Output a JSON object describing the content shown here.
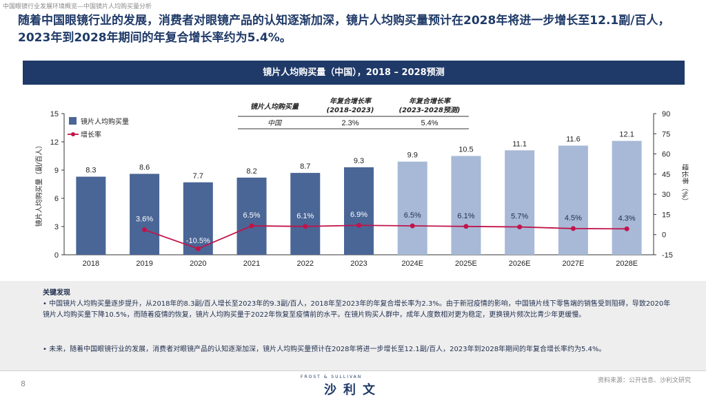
{
  "page": {
    "breadcrumb": "中国眼镜行业发展环境概览—中国镜片人均购买量分析",
    "headline": "随着中国眼镜行业的发展，消费者对眼镜产品的认知逐渐加深，镜片人均购买量预计在2028年将进一步增长至12.1副/百人，2023年到2028年期间的年复合增长率约为5.4%。",
    "page_number": "8",
    "logo_top": "FROST & SULLIVAN",
    "logo_main": "沙利文",
    "source": "资料来源：公开信息、沙利文研究"
  },
  "chart_data": {
    "type": "bar",
    "title": "镜片人均购买量（中国），2018 – 2028预测",
    "categories": [
      "2018",
      "2019",
      "2020",
      "2021",
      "2022",
      "2023",
      "2024E",
      "2025E",
      "2026E",
      "2027E",
      "2028E"
    ],
    "series": [
      {
        "name": "镜片人均购买量",
        "values": [
          8.3,
          8.6,
          7.7,
          8.2,
          8.7,
          9.3,
          9.9,
          10.5,
          11.1,
          11.6,
          12.1
        ],
        "labels": [
          "8.3",
          "8.6",
          "7.7",
          "8.2",
          "8.7",
          "9.3",
          "9.9",
          "10.5",
          "11.1",
          "11.6",
          "12.1"
        ],
        "axis": "left",
        "color": "#4a6696",
        "forecast_color": "#a7b9d6"
      },
      {
        "name": "增长率",
        "values": [
          null,
          3.6,
          -10.5,
          6.5,
          6.1,
          6.9,
          6.5,
          6.1,
          5.7,
          4.5,
          4.3
        ],
        "labels": [
          "",
          "3.6%",
          "-10.5%",
          "6.5%",
          "6.1%",
          "6.9%",
          "6.5%",
          "6.1%",
          "5.7%",
          "4.5%",
          "4.3%"
        ],
        "axis": "right",
        "color": "#c0144a",
        "type": "line"
      }
    ],
    "ylabel": "镜片人均购买量（副/百人）",
    "ylim": [
      0,
      15
    ],
    "yticks": [
      "0",
      "3",
      "6",
      "9",
      "12",
      "15"
    ],
    "y2label": "增长率（%）",
    "y2lim": [
      -15,
      90
    ],
    "y2ticks": [
      "-15",
      "0",
      "15",
      "30",
      "45",
      "60",
      "75",
      "90"
    ],
    "forecast_start_index": 6,
    "cagr_table": {
      "headers": [
        "镜片人均购买量",
        "年复合增长率\n(2018-2023)",
        "年复合增长率\n(2023-2028预测)"
      ],
      "row_label": "中国",
      "row_values": [
        "2.3%",
        "5.4%"
      ]
    },
    "legend_placement": "top-left",
    "grid": false
  },
  "findings": {
    "title": "关键发现",
    "bullets": [
      "• 中国镜片人均购买量逐步提升，从2018年的8.3副/百人增长至2023年的9.3副/百人，2018年至2023年的年复合增长率为2.3%。由于新冠疫情的影响，中国镜片线下零售端的销售受到阻碍，导致2020年镜片人均购买量下降10.5%，而随着疫情的恢复，镜片人均购买量于2022年恢复至疫情前的水平。在镜片购买人群中，成年人度数相对更为稳定，更换镜片频次比青少年更缓慢。",
      "• 未来，随着中国眼镜行业的发展，消费者对眼镜产品的认知逐渐加深，镜片人均购买量预计在2028年将进一步增长至12.1副/百人，2023年到2028年期间的年复合增长率约为5.4%。"
    ]
  }
}
